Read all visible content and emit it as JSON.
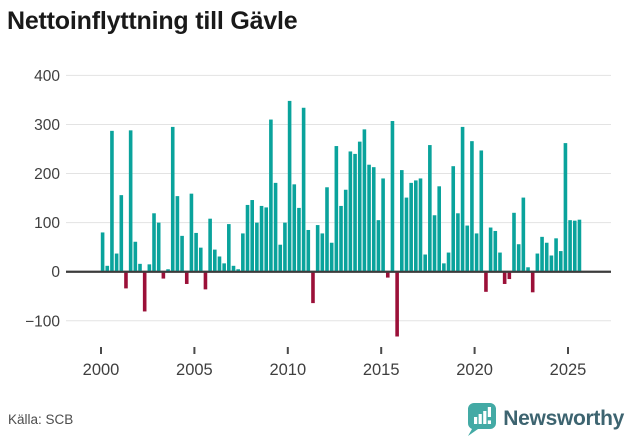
{
  "title": "Nettoinflyttning till Gävle",
  "footer": {
    "source": "Källa: SCB",
    "brand": "Newsworthy"
  },
  "icons": {
    "brand_logo": "newsworthy-speech-bubble-bar-chart-icon"
  },
  "colors": {
    "positive_bar": "#0AA39C",
    "negative_bar": "#9B1038",
    "gridline": "#E3E3E3",
    "zero_line": "#3C3C3C",
    "axis_text": "#3F3F3F",
    "tick_mark": "#4A4A4A",
    "title_text": "#191919",
    "brand_teal": "#43AAA5",
    "brand_text": "#3D6470"
  },
  "chart_data": {
    "type": "bar",
    "title": "Nettoinflyttning till Gävle",
    "frequency": "quarterly",
    "x_start": "2000 Q1",
    "x_end": "2025 Q3",
    "values": [
      80,
      12,
      287,
      37,
      156,
      -34,
      288,
      61,
      16,
      -81,
      15,
      119,
      100,
      -14,
      5,
      295,
      154,
      73,
      -25,
      159,
      79,
      49,
      -36,
      108,
      45,
      31,
      17,
      97,
      12,
      5,
      78,
      136,
      146,
      100,
      134,
      131,
      310,
      181,
      55,
      100,
      348,
      178,
      130,
      334,
      85,
      -64,
      95,
      78,
      172,
      59,
      256,
      134,
      167,
      245,
      240,
      265,
      290,
      218,
      213,
      105,
      190,
      -12,
      307,
      -132,
      207,
      151,
      181,
      186,
      190,
      35,
      258,
      115,
      174,
      17,
      39,
      215,
      119,
      295,
      94,
      266,
      78,
      247,
      -41,
      90,
      83,
      39,
      -25,
      -15,
      120,
      56,
      151,
      9,
      -42,
      37,
      71,
      59,
      33,
      68,
      42,
      262,
      105,
      104,
      106
    ],
    "x_tick_labels": [
      "2000",
      "2005",
      "2010",
      "2015",
      "2020",
      "2025"
    ],
    "y_ticks": [
      400,
      300,
      200,
      100,
      0,
      -100
    ],
    "ylim": [
      -150,
      420
    ],
    "xlabel": "",
    "ylabel": "",
    "grid": true,
    "legend": "none"
  }
}
